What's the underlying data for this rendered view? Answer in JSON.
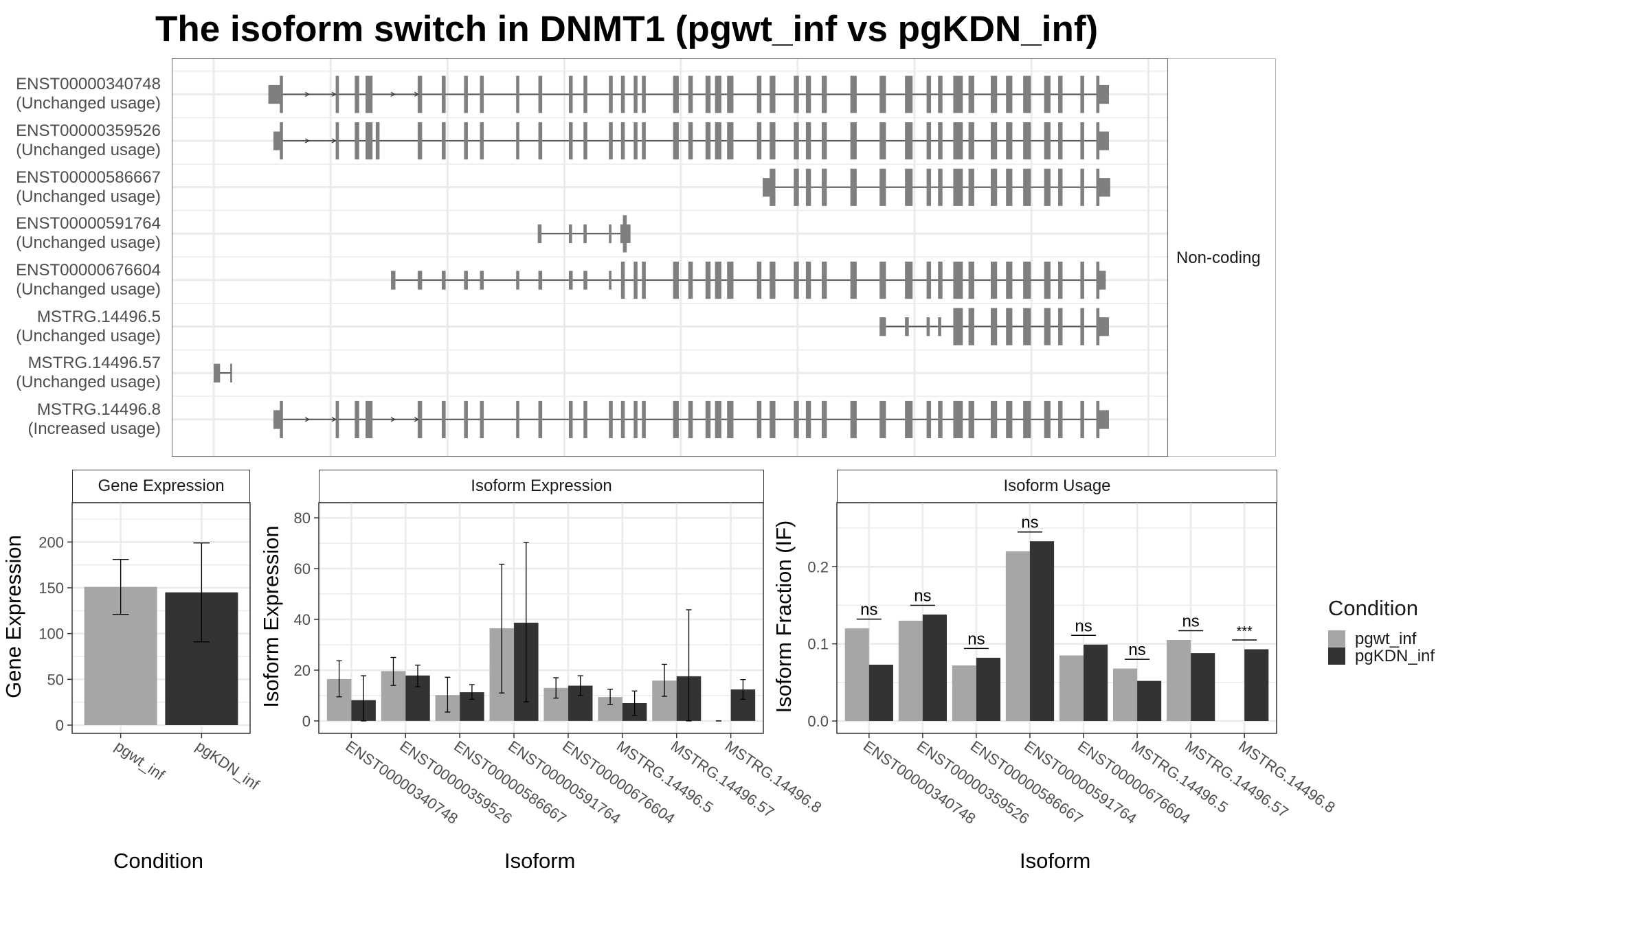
{
  "title": "The isoform switch in DNMT1 (pgwt_inf vs pgKDN_inf)",
  "colors": {
    "pgwt_inf": "#a6a6a6",
    "pgKDN_inf": "#333333",
    "exon": "#7f7f7f",
    "grid": "#ebebeb"
  },
  "structure": {
    "facet_label": "Non-coding",
    "shared_cds_exons": [
      [
        170,
        175
      ],
      [
        258,
        263
      ],
      [
        288,
        295
      ],
      [
        305,
        316
      ],
      [
        387,
        394
      ],
      [
        425,
        431
      ],
      [
        460,
        466
      ],
      [
        485,
        491
      ],
      [
        542,
        547
      ],
      [
        577,
        583
      ],
      [
        625,
        631
      ],
      [
        648,
        654
      ],
      [
        688,
        694
      ],
      [
        707,
        713
      ],
      [
        727,
        733
      ],
      [
        740,
        746
      ],
      [
        789,
        798
      ],
      [
        813,
        820
      ],
      [
        840,
        848
      ],
      [
        855,
        865
      ],
      [
        874,
        884
      ],
      [
        921,
        928
      ],
      [
        941,
        950
      ],
      [
        979,
        987
      ],
      [
        998,
        1006
      ],
      [
        1023,
        1031
      ],
      [
        1068,
        1078
      ],
      [
        1114,
        1124
      ],
      [
        1154,
        1166
      ],
      [
        1188,
        1195
      ],
      [
        1206,
        1213
      ],
      [
        1230,
        1245
      ],
      [
        1254,
        1263
      ],
      [
        1289,
        1299
      ],
      [
        1313,
        1323
      ],
      [
        1340,
        1352
      ],
      [
        1373,
        1383
      ],
      [
        1395,
        1402
      ],
      [
        1430,
        1436
      ],
      [
        1455,
        1460
      ]
    ],
    "transcripts": [
      {
        "id": "ENST00000340748",
        "status": "(Unchanged usage)",
        "span": [
          152,
          1475
        ],
        "utr": [
          [
            152,
            172
          ],
          [
            1458,
            1475
          ]
        ],
        "cds_range": [
          170,
          1460
        ],
        "extra_cds": [],
        "arrows": [
          213,
          255,
          348,
          385
        ]
      },
      {
        "id": "ENST00000359526",
        "status": "(Unchanged usage)",
        "span": [
          160,
          1475
        ],
        "utr": [
          [
            160,
            172
          ],
          [
            1458,
            1475
          ]
        ],
        "cds_range": [
          170,
          1460
        ],
        "extra_cds": [
          [
            321,
            327
          ]
        ],
        "arrows": [
          213,
          255
        ]
      },
      {
        "id": "ENST00000586667",
        "status": "(Unchanged usage)",
        "span": [
          930,
          1477
        ],
        "utr": [
          [
            930,
            945
          ],
          [
            1458,
            1477
          ]
        ],
        "cds_range": [
          941,
          1460
        ],
        "extra_cds": [],
        "arrows": []
      },
      {
        "id": "ENST00000591764",
        "status": "(Unchanged usage)",
        "span": [
          578,
          716
        ],
        "utr": [
          [
            576,
            582
          ],
          [
            625,
            630
          ],
          [
            648,
            653
          ],
          [
            688,
            692
          ],
          [
            706,
            722
          ]
        ],
        "cds_range": [
          0,
          0
        ],
        "extra_cds": [
          [
            710,
            716
          ]
        ],
        "arrows": []
      },
      {
        "id": "ENST00000676604",
        "status": "(Unchanged usage)",
        "span": [
          345,
          1470
        ],
        "utr": [
          [
            345,
            352
          ],
          [
            387,
            394
          ],
          [
            425,
            431
          ],
          [
            460,
            466
          ],
          [
            485,
            491
          ],
          [
            542,
            547
          ],
          [
            577,
            583
          ],
          [
            625,
            631
          ],
          [
            648,
            654
          ],
          [
            688,
            692
          ],
          [
            1455,
            1470
          ]
        ],
        "cds_range": [
          707,
          1460
        ],
        "extra_cds": [],
        "arrows": []
      },
      {
        "id": "MSTRG.14496.5",
        "status": "(Unchanged usage)",
        "span": [
          1114,
          1475
        ],
        "utr": [
          [
            1114,
            1124
          ],
          [
            1154,
            1160
          ],
          [
            1188,
            1193
          ],
          [
            1206,
            1211
          ],
          [
            1458,
            1475
          ]
        ],
        "cds_range": [
          1230,
          1460
        ],
        "extra_cds": [],
        "arrows": []
      },
      {
        "id": "MSTRG.14496.57",
        "status": "(Unchanged usage)",
        "span": [
          66,
          95
        ],
        "utr": [
          [
            66,
            76
          ],
          [
            92,
            95
          ]
        ],
        "cds_range": [
          0,
          0
        ],
        "extra_cds": [],
        "arrows": []
      },
      {
        "id": "MSTRG.14496.8",
        "status": "(Increased usage)",
        "span": [
          160,
          1475
        ],
        "utr": [
          [
            160,
            172
          ],
          [
            1458,
            1475
          ]
        ],
        "cds_range": [
          170,
          1460
        ],
        "extra_cds": [],
        "arrows": [
          213,
          255,
          348,
          385
        ]
      }
    ]
  },
  "chart_data": [
    {
      "type": "bar",
      "title": "Gene Expression",
      "xlabel": "Condition",
      "ylabel": "Gene Expression",
      "categories": [
        "pgwt_inf",
        "pgKDN_inf"
      ],
      "mode": "single",
      "values": [
        151,
        145
      ],
      "errors": [
        [
          121,
          181
        ],
        [
          91,
          199
        ]
      ],
      "bar_series": [
        "pgwt_inf",
        "pgKDN_inf"
      ],
      "yticks": [
        0,
        50,
        100,
        150,
        200
      ],
      "ylim": [
        -9,
        243
      ]
    },
    {
      "type": "bar",
      "title": "Isoform Expression",
      "xlabel": "Isoform",
      "ylabel": "Isoform Expression",
      "categories": [
        "ENST00000340748",
        "ENST00000359526",
        "ENST00000586667",
        "ENST00000591764",
        "ENST00000676604",
        "MSTRG.14496.5",
        "MSTRG.14496.57",
        "MSTRG.14496.8"
      ],
      "mode": "dodge",
      "series": [
        {
          "name": "pgwt_inf",
          "values": [
            16.5,
            19.6,
            10.2,
            36.5,
            13.0,
            9.4,
            15.9,
            0
          ],
          "errors": [
            [
              9.5,
              23.7
            ],
            [
              14,
              25
            ],
            [
              3.5,
              17.2
            ],
            [
              11,
              61.7
            ],
            [
              9,
              17
            ],
            [
              6.5,
              12.5
            ],
            [
              9.7,
              22.3
            ],
            [
              0,
              0
            ]
          ]
        },
        {
          "name": "pgKDN_inf",
          "values": [
            8.2,
            17.9,
            11.3,
            38.7,
            13.9,
            7.0,
            17.6,
            12.4
          ],
          "errors": [
            [
              0,
              17.8
            ],
            [
              13.5,
              22
            ],
            [
              8.5,
              14.3
            ],
            [
              7.5,
              70.3
            ],
            [
              10,
              17.8
            ],
            [
              2,
              11.8
            ],
            [
              0,
              43.8
            ],
            [
              8.5,
              16.3
            ]
          ]
        }
      ],
      "yticks": [
        0,
        20,
        40,
        60,
        80
      ],
      "ylim": [
        -4.9,
        86
      ]
    },
    {
      "type": "bar",
      "title": "Isoform Usage",
      "xlabel": "Isoform",
      "ylabel": "Isoform Fraction (IF)",
      "categories": [
        "ENST00000340748",
        "ENST00000359526",
        "ENST00000586667",
        "ENST00000591764",
        "ENST00000676604",
        "MSTRG.14496.5",
        "MSTRG.14496.57",
        "MSTRG.14496.8"
      ],
      "mode": "dodge",
      "series": [
        {
          "name": "pgwt_inf",
          "values": [
            0.12,
            0.13,
            0.072,
            0.22,
            0.085,
            0.068,
            0.105,
            0
          ]
        },
        {
          "name": "pgKDN_inf",
          "values": [
            0.073,
            0.138,
            0.082,
            0.233,
            0.099,
            0.052,
            0.088,
            0.093
          ]
        }
      ],
      "significance": [
        "ns",
        "ns",
        "ns",
        "ns",
        "ns",
        "ns",
        "ns",
        "***"
      ],
      "yticks": [
        0.0,
        0.1,
        0.2
      ],
      "ytick_labels": [
        "0.0",
        "0.1",
        "0.2"
      ],
      "ylim": [
        -0.016,
        0.283
      ]
    }
  ],
  "legend": {
    "title": "Condition",
    "items": [
      "pgwt_inf",
      "pgKDN_inf"
    ]
  }
}
